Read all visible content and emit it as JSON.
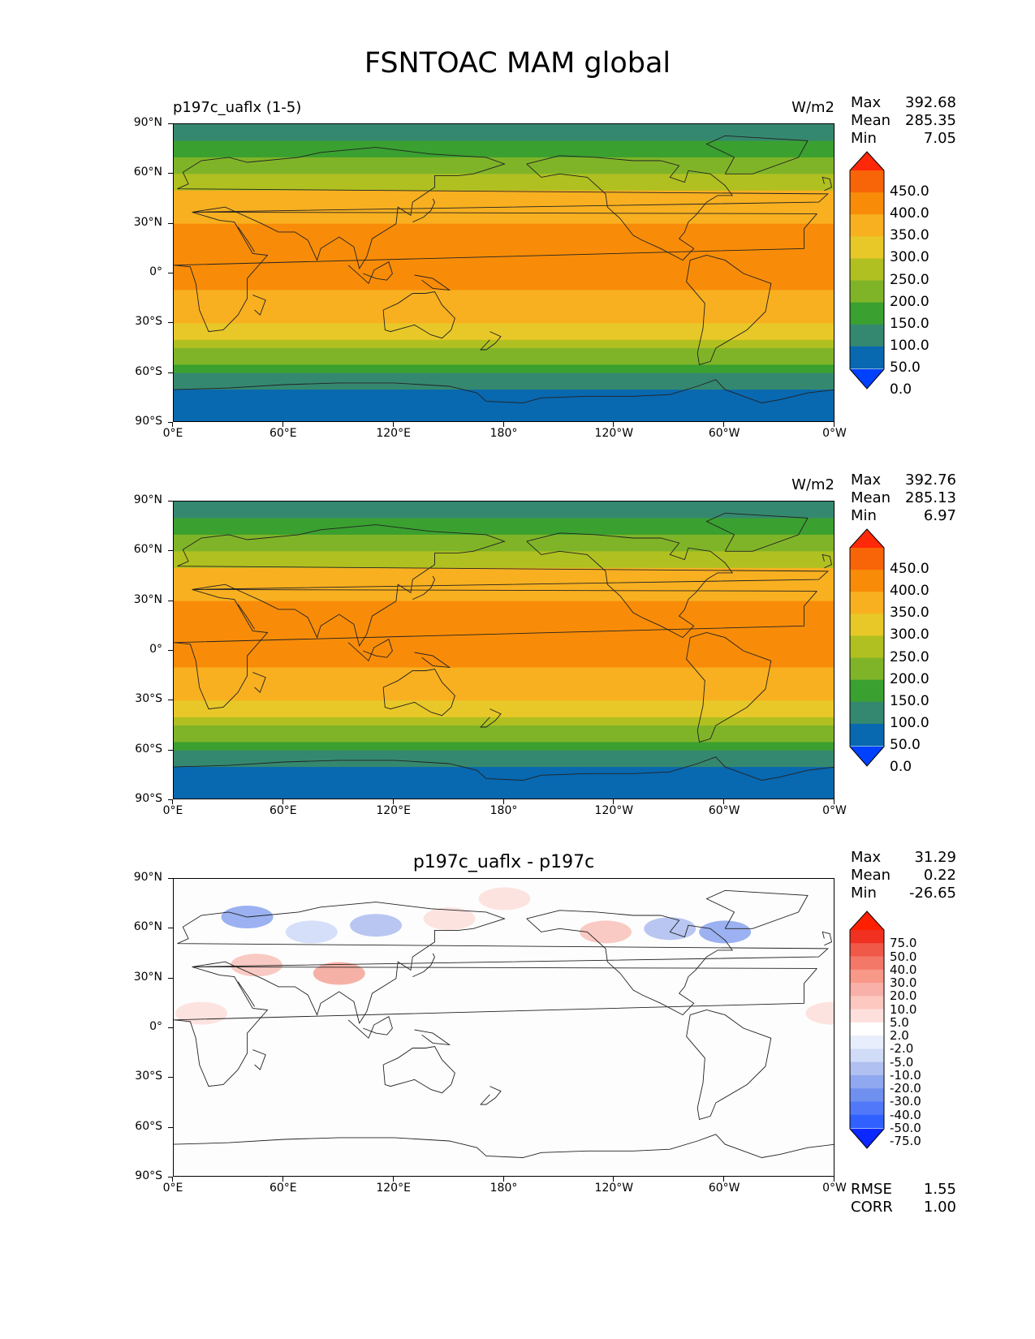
{
  "figure_title": "FSNTOAC MAM global",
  "chart_data": [
    {
      "type": "heatmap",
      "title_left": "p197c_uaflx (1-5)",
      "units": "W/m2",
      "stats": {
        "max_label": "Max",
        "max": "392.68",
        "mean_label": "Mean",
        "mean": "285.35",
        "min_label": "Min",
        "min": "7.05"
      },
      "ylabels": [
        "90°N",
        "60°N",
        "30°N",
        "0°",
        "30°S",
        "60°S",
        "90°S"
      ],
      "xlabels": [
        "0°E",
        "60°E",
        "120°E",
        "180°",
        "120°W",
        "60°W",
        "0°W"
      ],
      "levels": [
        "450.0",
        "400.0",
        "350.0",
        "300.0",
        "250.0",
        "200.0",
        "150.0",
        "100.0",
        "50.0",
        "0.0"
      ],
      "level_values": [
        0,
        50,
        100,
        150,
        200,
        250,
        300,
        350,
        400,
        450
      ],
      "colors": [
        "#0040FF",
        "#0868B0",
        "#358870",
        "#3AA030",
        "#80B428",
        "#B0C020",
        "#E8C828",
        "#F8B020",
        "#F88C08",
        "#F86408",
        "#FF2808"
      ],
      "zonal_profile": {
        "lat": [
          90,
          80,
          70,
          60,
          50,
          40,
          30,
          20,
          10,
          0,
          -10,
          -20,
          -30,
          -40,
          -45,
          -50,
          -55,
          -60,
          -65,
          -70,
          -75,
          -80,
          -90
        ],
        "value": [
          80,
          80,
          150,
          200,
          275,
          325,
          360,
          370,
          365,
          360,
          350,
          330,
          290,
          250,
          200,
          175,
          140,
          110,
          80,
          45,
          40,
          40,
          40
        ]
      }
    },
    {
      "type": "heatmap",
      "title_left": "",
      "units": "W/m2",
      "stats": {
        "max_label": "Max",
        "max": "392.76",
        "mean_label": "Mean",
        "mean": "285.13",
        "min_label": "Min",
        "min": "6.97"
      },
      "ylabels": [
        "90°N",
        "60°N",
        "30°N",
        "0°",
        "30°S",
        "60°S",
        "90°S"
      ],
      "xlabels": [
        "0°E",
        "60°E",
        "120°E",
        "180°",
        "120°W",
        "60°W",
        "0°W"
      ],
      "levels": [
        "450.0",
        "400.0",
        "350.0",
        "300.0",
        "250.0",
        "200.0",
        "150.0",
        "100.0",
        "50.0",
        "0.0"
      ],
      "level_values": [
        0,
        50,
        100,
        150,
        200,
        250,
        300,
        350,
        400,
        450
      ],
      "colors": [
        "#0040FF",
        "#0868B0",
        "#358870",
        "#3AA030",
        "#80B428",
        "#B0C020",
        "#E8C828",
        "#F8B020",
        "#F88C08",
        "#F86408",
        "#FF2808"
      ],
      "zonal_profile": {
        "lat": [
          90,
          80,
          70,
          60,
          50,
          40,
          30,
          20,
          10,
          0,
          -10,
          -20,
          -30,
          -40,
          -45,
          -50,
          -55,
          -60,
          -65,
          -70,
          -75,
          -80,
          -90
        ],
        "value": [
          80,
          80,
          150,
          200,
          275,
          325,
          360,
          370,
          365,
          360,
          350,
          330,
          290,
          250,
          200,
          175,
          140,
          110,
          80,
          45,
          40,
          40,
          40
        ]
      }
    },
    {
      "type": "heatmap",
      "title_center": "p197c_uaflx - p197c",
      "units": "",
      "stats": {
        "max_label": "Max",
        "max": "31.29",
        "mean_label": "Mean",
        "mean": "0.22",
        "min_label": "Min",
        "min": "-26.65"
      },
      "metrics": {
        "rmse_label": "RMSE",
        "rmse": "1.55",
        "corr_label": "CORR",
        "corr": "1.00"
      },
      "ylabels": [
        "90°N",
        "60°N",
        "30°N",
        "0°",
        "30°S",
        "60°S",
        "90°S"
      ],
      "xlabels": [
        "0°E",
        "60°E",
        "120°E",
        "180°",
        "120°W",
        "60°W",
        "0°W"
      ],
      "levels": [
        "75.0",
        "50.0",
        "40.0",
        "30.0",
        "20.0",
        "10.0",
        "5.0",
        "2.0",
        "-2.0",
        "-5.0",
        "-10.0",
        "-20.0",
        "-30.0",
        "-40.0",
        "-50.0",
        "-75.0"
      ],
      "colors": [
        "#0A28FF",
        "#3060FF",
        "#5078F8",
        "#7090F0",
        "#90A8F0",
        "#B0C0F0",
        "#D0DCF8",
        "#E8EEFC",
        "#FFFFFF",
        "#FDE0DC",
        "#FCC8C0",
        "#F8B0A8",
        "#F89888",
        "#F47868",
        "#F05848",
        "#F03020",
        "#FF2000"
      ],
      "anomalies": [
        {
          "lon": 40,
          "lat": 67,
          "value": -20
        },
        {
          "lon": 75,
          "lat": 58,
          "value": -8
        },
        {
          "lon": 110,
          "lat": 62,
          "value": -10
        },
        {
          "lon": 150,
          "lat": 66,
          "value": 8
        },
        {
          "lon": 235,
          "lat": 58,
          "value": 12
        },
        {
          "lon": 270,
          "lat": 60,
          "value": -15
        },
        {
          "lon": 300,
          "lat": 58,
          "value": -20
        },
        {
          "lon": 45,
          "lat": 38,
          "value": 15
        },
        {
          "lon": 90,
          "lat": 33,
          "value": 25
        },
        {
          "lon": 180,
          "lat": 78,
          "value": 5
        },
        {
          "lon": 15,
          "lat": 9,
          "value": 5
        },
        {
          "lon": 358,
          "lat": 9,
          "value": 5
        }
      ]
    }
  ]
}
